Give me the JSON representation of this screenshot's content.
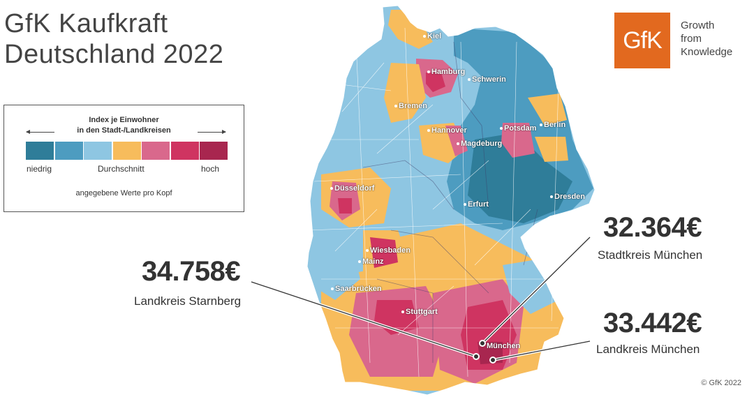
{
  "title": {
    "line1": "GfK Kaufkraft",
    "line2": "Deutschland 2022"
  },
  "legend": {
    "title_line1": "Index je Einwohner",
    "title_line2": "in den Stadt-/Landkreisen",
    "low_label": "niedrig",
    "mid_label": "Durchschnitt",
    "high_label": "hoch",
    "note": "angegebene Werte pro Kopf",
    "colors": [
      "#2f7d99",
      "#4d9cc0",
      "#8ec6e2",
      "#f7bc5c",
      "#d9688c",
      "#cf3461",
      "#a8264f"
    ]
  },
  "cities": [
    "Kiel",
    "Hamburg",
    "Schwerin",
    "Bremen",
    "Hannover",
    "Potsdam",
    "Berlin",
    "Magdeburg",
    "Düsseldorf",
    "Dresden",
    "Erfurt",
    "Wiesbaden",
    "Mainz",
    "Saarbrücken",
    "Stuttgart",
    "München"
  ],
  "callouts": {
    "starnberg": {
      "value": "34.758€",
      "label": "Landkreis Starnberg"
    },
    "stadt_muenchen": {
      "value": "32.364€",
      "label": "Stadtkreis München"
    },
    "lk_muenchen": {
      "value": "33.442€",
      "label": "Landkreis München"
    }
  },
  "logo": {
    "text": "GfK",
    "tagline_line1": "Growth",
    "tagline_line2": "from",
    "tagline_line3": "Knowledge",
    "brand_color": "#e2691f"
  },
  "copyright": "© GfK 2022"
}
